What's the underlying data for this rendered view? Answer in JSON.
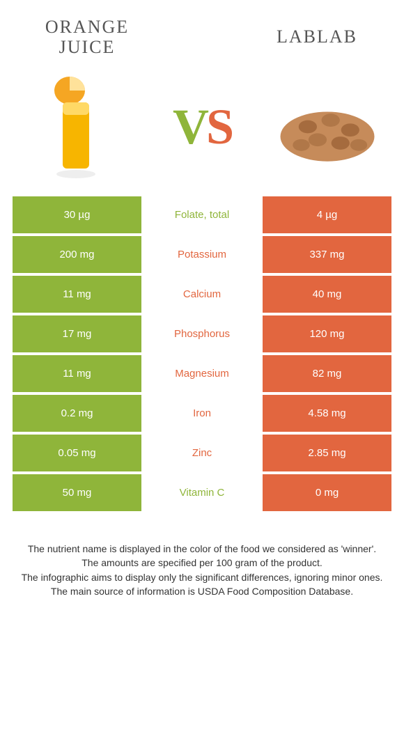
{
  "left": {
    "title_line1": "ORANGE",
    "title_line2": "JUICE"
  },
  "right": {
    "title": "LABLAB"
  },
  "vs": {
    "v": "V",
    "s": "S"
  },
  "colors": {
    "left": "#8fb53a",
    "right": "#e2663f"
  },
  "rows": [
    {
      "left": "30 µg",
      "label": "Folate, total",
      "right": "4 µg",
      "winner": "left"
    },
    {
      "left": "200 mg",
      "label": "Potassium",
      "right": "337 mg",
      "winner": "right"
    },
    {
      "left": "11 mg",
      "label": "Calcium",
      "right": "40 mg",
      "winner": "right"
    },
    {
      "left": "17 mg",
      "label": "Phosphorus",
      "right": "120 mg",
      "winner": "right"
    },
    {
      "left": "11 mg",
      "label": "Magnesium",
      "right": "82 mg",
      "winner": "right"
    },
    {
      "left": "0.2 mg",
      "label": "Iron",
      "right": "4.58 mg",
      "winner": "right"
    },
    {
      "left": "0.05 mg",
      "label": "Zinc",
      "right": "2.85 mg",
      "winner": "right"
    },
    {
      "left": "50 mg",
      "label": "Vitamin C",
      "right": "0 mg",
      "winner": "left"
    }
  ],
  "footer": {
    "l1": "The nutrient name is displayed in the color of the food we considered as 'winner'.",
    "l2": "The amounts are specified per 100 gram of the product.",
    "l3": "The infographic aims to display only the significant differences, ignoring minor ones.",
    "l4": "The main source of information is USDA Food Composition Database."
  }
}
